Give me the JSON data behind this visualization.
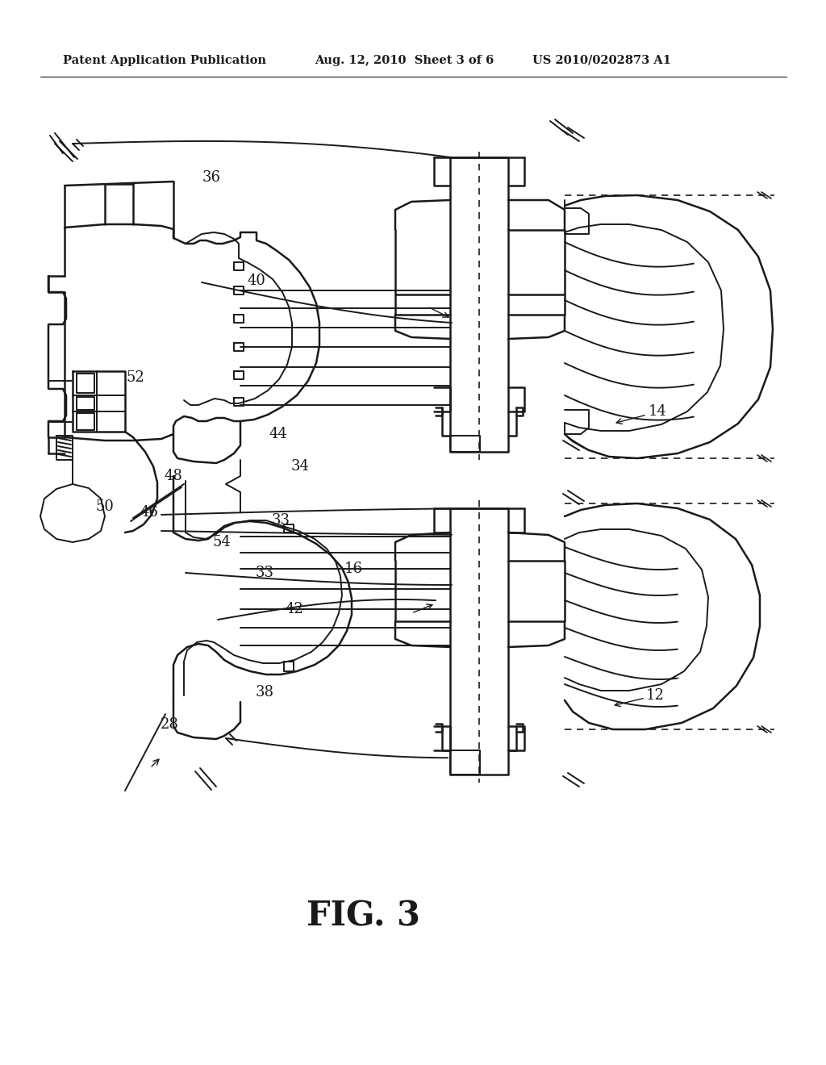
{
  "bg_color": "#ffffff",
  "line_color": "#1a1a1a",
  "header_left": "Patent Application Publication",
  "header_center": "Aug. 12, 2010  Sheet 3 of 6",
  "header_right": "US 2010/0202873 A1",
  "figure_label": "FIG. 3"
}
